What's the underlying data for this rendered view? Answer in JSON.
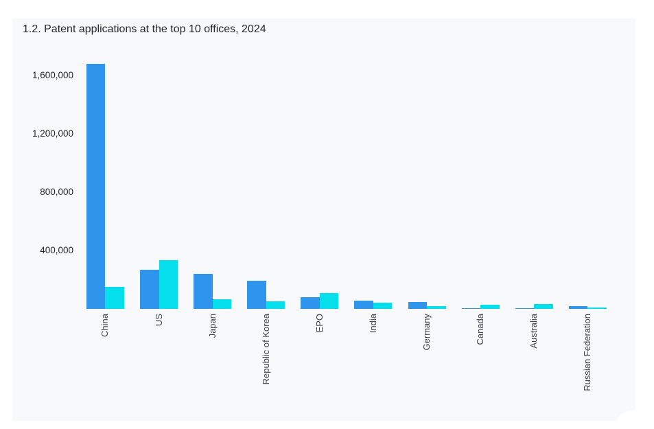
{
  "page": {
    "background": "#ffffff"
  },
  "card": {
    "background": "#f8f9fa"
  },
  "chart_data": {
    "type": "bar",
    "title": "1.2. Patent applications at the top 10 offices, 2024",
    "categories": [
      "China",
      "US",
      "Japan",
      "Republic of Korea",
      "EPO",
      "India",
      "Germany",
      "Canada",
      "Australia",
      "Russian Federation"
    ],
    "series": [
      {
        "name": "blue",
        "color": "#2e94ec",
        "values": [
          1680000,
          268000,
          238000,
          193000,
          80000,
          56000,
          46000,
          7000,
          5000,
          19000
        ]
      },
      {
        "name": "cyan",
        "color": "#05dfec",
        "values": [
          150000,
          334000,
          66000,
          52000,
          108000,
          42000,
          19000,
          28000,
          31000,
          8000
        ]
      }
    ],
    "xlabel": "",
    "ylabel": "",
    "yticks": [
      {
        "value": 400000,
        "label": "400,000"
      },
      {
        "value": 800000,
        "label": "800,000"
      },
      {
        "value": 1200000,
        "label": "1,200,000"
      },
      {
        "value": 1600000,
        "label": "1,600,000"
      }
    ],
    "ylim": [
      0,
      1700000
    ],
    "grid": false,
    "legend": "none",
    "x_tick_rotation": 90
  }
}
